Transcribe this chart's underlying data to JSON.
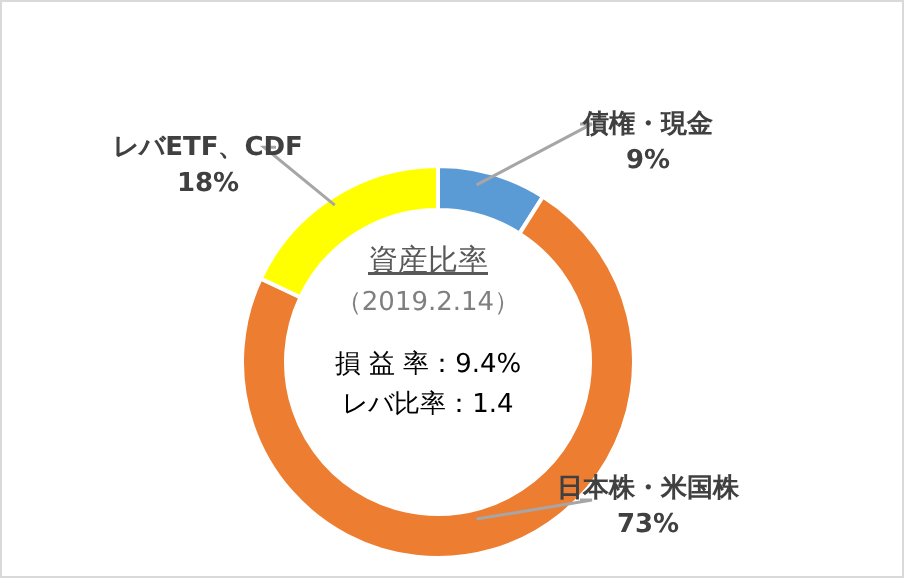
{
  "chart_data": {
    "type": "donut",
    "title": "資産比率",
    "subtitle": "（2019.2.14）",
    "categories": [
      "債権・現金",
      "日本株・米国株",
      "レバETF、CDF"
    ],
    "values": [
      9,
      73,
      18
    ],
    "value_labels": [
      "9%",
      "73%",
      "18%"
    ],
    "colors": [
      "#5b9bd5",
      "#ed7d31",
      "#ffff00"
    ],
    "annotations": [
      "損 益 率：9.4%",
      "レバ比率：1.4"
    ],
    "legend": false
  }
}
